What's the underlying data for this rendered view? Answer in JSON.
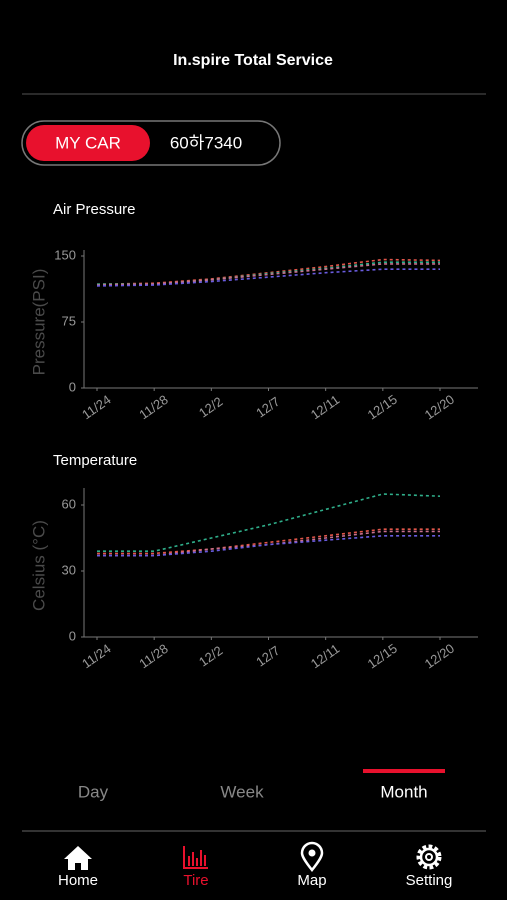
{
  "header": {
    "title": "In.spire Total Service"
  },
  "toggle": {
    "options": [
      "MY CAR",
      "60하7340"
    ],
    "active": 0
  },
  "chart_data": [
    {
      "type": "line",
      "title": "Air Pressure",
      "y_label": "Pressure(PSI)",
      "categories": [
        "11/24",
        "11/28",
        "12/2",
        "12/7",
        "12/11",
        "12/15",
        "12/20"
      ],
      "ylim": [
        0,
        150
      ],
      "yticks": [
        0,
        75,
        150
      ],
      "series": [
        {
          "color": "#e0564a",
          "values": [
            118,
            119,
            124,
            131,
            138,
            146,
            145
          ]
        },
        {
          "color": "#2fae8a",
          "values": [
            118,
            118,
            123,
            130,
            136,
            143,
            143
          ]
        },
        {
          "color": "#c8708e",
          "values": [
            117,
            118,
            123,
            129,
            135,
            141,
            141
          ]
        },
        {
          "color": "#6a5ce0",
          "values": [
            116,
            117,
            121,
            126,
            131,
            135,
            135
          ]
        }
      ]
    },
    {
      "type": "line",
      "title": "Temperature",
      "y_label": "Celsius (°C)",
      "categories": [
        "11/24",
        "11/28",
        "12/2",
        "12/7",
        "12/11",
        "12/15",
        "12/20"
      ],
      "ylim": [
        0,
        65
      ],
      "yticks": [
        0,
        30,
        60
      ],
      "series": [
        {
          "color": "#e0564a",
          "values": [
            38,
            38,
            40,
            43,
            46,
            49,
            49
          ]
        },
        {
          "color": "#2fae8a",
          "values": [
            39,
            39,
            45,
            51,
            58,
            65,
            64
          ]
        },
        {
          "color": "#c8708e",
          "values": [
            37,
            37,
            40,
            42,
            45,
            48,
            48
          ]
        },
        {
          "color": "#6a5ce0",
          "values": [
            37,
            37,
            39,
            42,
            44,
            46,
            46
          ]
        }
      ]
    }
  ],
  "tabs": {
    "items": [
      "Day",
      "Week",
      "Month"
    ],
    "active": 2
  },
  "nav": {
    "items": [
      "Home",
      "Tire",
      "Map",
      "Setting"
    ],
    "active": 1
  }
}
